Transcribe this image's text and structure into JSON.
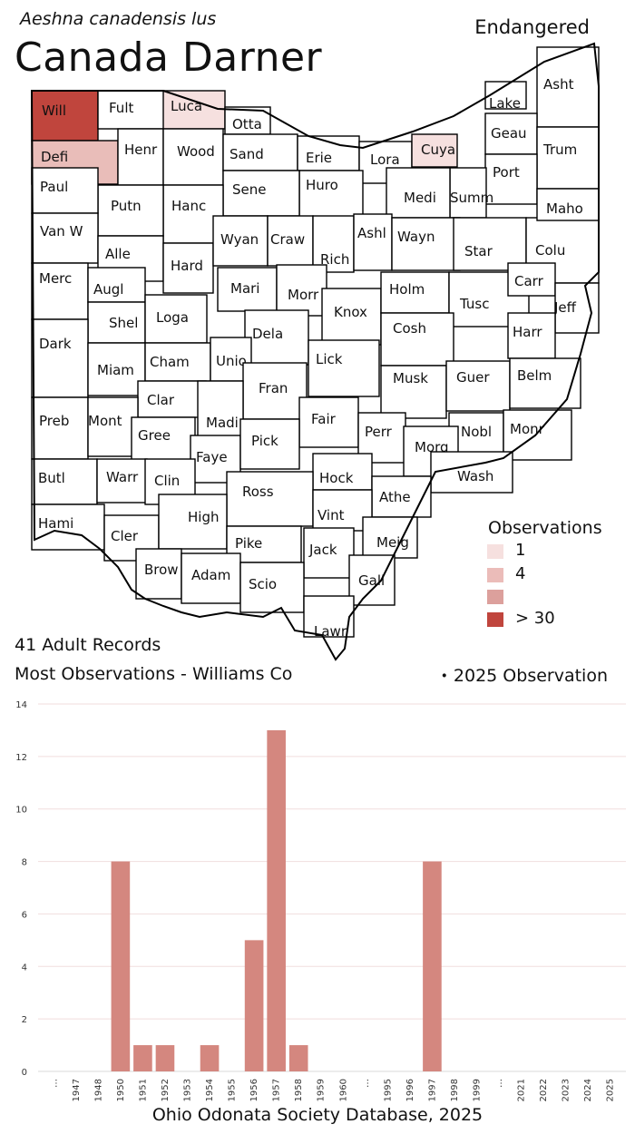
{
  "header": {
    "scientific_name": "Aeshna canadensis lus",
    "common_name": "Canada Darner",
    "status": "Endangered"
  },
  "summary": {
    "records": "41 Adult Records",
    "most": "Most Observations - Williams Co",
    "legend_2025": "2025  Observation",
    "legend_2025_marker": "•"
  },
  "footer": {
    "source": "Ohio Odonata Society Database, 2025"
  },
  "map_legend": {
    "title": "Observations",
    "items": [
      {
        "label": "1",
        "color": "#f6e0df"
      },
      {
        "label": "4",
        "color": "#ebbcb9"
      },
      {
        "label": "",
        "color": "#dca09c"
      },
      {
        "label": "> 30",
        "color": "#c0453d"
      }
    ]
  },
  "counties": [
    {
      "name": "Will",
      "fill": "#c0453d"
    },
    {
      "name": "Fult",
      "fill": "#ffffff"
    },
    {
      "name": "Luca",
      "fill": "#f6e0df"
    },
    {
      "name": "Otta",
      "fill": "#ffffff"
    },
    {
      "name": "Defi",
      "fill": "#e9bdb9"
    },
    {
      "name": "Henr",
      "fill": "#ffffff"
    },
    {
      "name": "Wood",
      "fill": "#ffffff"
    },
    {
      "name": "Sand",
      "fill": "#ffffff"
    },
    {
      "name": "Erie",
      "fill": "#ffffff"
    },
    {
      "name": "Lora",
      "fill": "#ffffff"
    },
    {
      "name": "Cuya",
      "fill": "#f6e0df"
    },
    {
      "name": "Lake",
      "fill": "#ffffff"
    },
    {
      "name": "Asht",
      "fill": "#ffffff"
    },
    {
      "name": "Geau",
      "fill": "#ffffff"
    },
    {
      "name": "Trum",
      "fill": "#ffffff"
    },
    {
      "name": "Port",
      "fill": "#ffffff"
    },
    {
      "name": "Summ",
      "fill": "#ffffff"
    },
    {
      "name": "Medi",
      "fill": "#ffffff"
    },
    {
      "name": "Huro",
      "fill": "#ffffff"
    },
    {
      "name": "Sene",
      "fill": "#ffffff"
    },
    {
      "name": "Hanc",
      "fill": "#ffffff"
    },
    {
      "name": "Putn",
      "fill": "#ffffff"
    },
    {
      "name": "Paul",
      "fill": "#ffffff"
    },
    {
      "name": "Van W",
      "fill": "#ffffff"
    },
    {
      "name": "Alle",
      "fill": "#ffffff"
    },
    {
      "name": "Hard",
      "fill": "#ffffff"
    },
    {
      "name": "Wyan",
      "fill": "#ffffff"
    },
    {
      "name": "Craw",
      "fill": "#ffffff"
    },
    {
      "name": "Rich",
      "fill": "#ffffff"
    },
    {
      "name": "Ashl",
      "fill": "#ffffff"
    },
    {
      "name": "Wayn",
      "fill": "#ffffff"
    },
    {
      "name": "Star",
      "fill": "#ffffff"
    },
    {
      "name": "Colu",
      "fill": "#ffffff"
    },
    {
      "name": "Maho",
      "fill": "#ffffff"
    },
    {
      "name": "Merc",
      "fill": "#ffffff"
    },
    {
      "name": "Augl",
      "fill": "#ffffff"
    },
    {
      "name": "Mari",
      "fill": "#ffffff"
    },
    {
      "name": "Morr",
      "fill": "#ffffff"
    },
    {
      "name": "Knox",
      "fill": "#ffffff"
    },
    {
      "name": "Holm",
      "fill": "#ffffff"
    },
    {
      "name": "Tusc",
      "fill": "#ffffff"
    },
    {
      "name": "Carr",
      "fill": "#ffffff"
    },
    {
      "name": "Jeff",
      "fill": "#ffffff"
    },
    {
      "name": "Shel",
      "fill": "#ffffff"
    },
    {
      "name": "Loga",
      "fill": "#ffffff"
    },
    {
      "name": "Dela",
      "fill": "#ffffff"
    },
    {
      "name": "Cosh",
      "fill": "#ffffff"
    },
    {
      "name": "Harr",
      "fill": "#ffffff"
    },
    {
      "name": "Dark",
      "fill": "#ffffff"
    },
    {
      "name": "Miam",
      "fill": "#ffffff"
    },
    {
      "name": "Cham",
      "fill": "#ffffff"
    },
    {
      "name": "Unio",
      "fill": "#ffffff"
    },
    {
      "name": "Lick",
      "fill": "#ffffff"
    },
    {
      "name": "Musk",
      "fill": "#ffffff"
    },
    {
      "name": "Guer",
      "fill": "#ffffff"
    },
    {
      "name": "Belm",
      "fill": "#ffffff"
    },
    {
      "name": "Clar",
      "fill": "#ffffff"
    },
    {
      "name": "Fran",
      "fill": "#ffffff"
    },
    {
      "name": "Madi",
      "fill": "#ffffff"
    },
    {
      "name": "Fair",
      "fill": "#ffffff"
    },
    {
      "name": "Perr",
      "fill": "#ffffff"
    },
    {
      "name": "Nobl",
      "fill": "#ffffff"
    },
    {
      "name": "Monr",
      "fill": "#ffffff"
    },
    {
      "name": "Preb",
      "fill": "#ffffff"
    },
    {
      "name": "Mont",
      "fill": "#ffffff"
    },
    {
      "name": "Gree",
      "fill": "#ffffff"
    },
    {
      "name": "Faye",
      "fill": "#ffffff"
    },
    {
      "name": "Pick",
      "fill": "#ffffff"
    },
    {
      "name": "Morg",
      "fill": "#ffffff"
    },
    {
      "name": "Wash",
      "fill": "#ffffff"
    },
    {
      "name": "Butl",
      "fill": "#ffffff"
    },
    {
      "name": "Warr",
      "fill": "#ffffff"
    },
    {
      "name": "Clin",
      "fill": "#ffffff"
    },
    {
      "name": "Hock",
      "fill": "#ffffff"
    },
    {
      "name": "Athe",
      "fill": "#ffffff"
    },
    {
      "name": "Ross",
      "fill": "#ffffff"
    },
    {
      "name": "Hami",
      "fill": "#ffffff"
    },
    {
      "name": "Cler",
      "fill": "#ffffff"
    },
    {
      "name": "High",
      "fill": "#ffffff"
    },
    {
      "name": "Vint",
      "fill": "#ffffff"
    },
    {
      "name": "Meig",
      "fill": "#ffffff"
    },
    {
      "name": "Pike",
      "fill": "#ffffff"
    },
    {
      "name": "Jack",
      "fill": "#ffffff"
    },
    {
      "name": "Brow",
      "fill": "#ffffff"
    },
    {
      "name": "Adam",
      "fill": "#ffffff"
    },
    {
      "name": "Scio",
      "fill": "#ffffff"
    },
    {
      "name": "Gall",
      "fill": "#ffffff"
    },
    {
      "name": "Lawr",
      "fill": "#ffffff"
    }
  ],
  "chart_data": {
    "type": "bar",
    "categories": [
      "…",
      "1947",
      "1948",
      "1950",
      "1951",
      "1952",
      "1953",
      "1954",
      "1955",
      "1956",
      "1957",
      "1958",
      "1959",
      "1960",
      "…",
      "1995",
      "1996",
      "1997",
      "1998",
      "1999",
      "…",
      "2021",
      "2022",
      "2023",
      "2024",
      "2025"
    ],
    "values": [
      0,
      0,
      0,
      8,
      1,
      1,
      0,
      1,
      0,
      5,
      13,
      1,
      0,
      0,
      0,
      0,
      0,
      8,
      0,
      0,
      0,
      0,
      0,
      0,
      0,
      0
    ],
    "ylim": [
      0,
      14
    ],
    "yticks": [
      0,
      2,
      4,
      6,
      8,
      10,
      12,
      14
    ],
    "bar_color": "#d4877f",
    "grid": true
  }
}
